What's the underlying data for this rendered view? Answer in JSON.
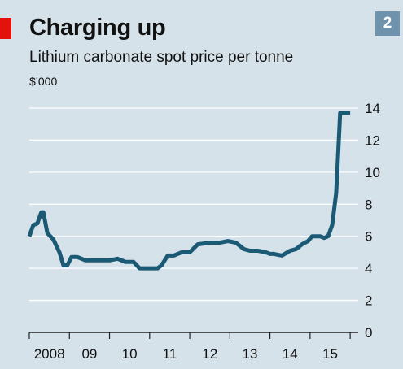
{
  "header": {
    "title": "Charging up",
    "subtitle": "Lithium carbonate spot price per tonne",
    "unit": "$’000",
    "badge": "2"
  },
  "colors": {
    "background": "#d6e2ea",
    "line": "#1b5a75",
    "grid": "#ffffff",
    "accent": "#e3120b",
    "badge": "#6f93ac"
  },
  "chart_data": {
    "type": "line",
    "title": "Charging up",
    "subtitle": "Lithium carbonate spot price per tonne",
    "ylabel": "$’000",
    "ylim": [
      0,
      14
    ],
    "yticks": [
      0,
      2,
      4,
      6,
      8,
      10,
      12,
      14
    ],
    "xlim": [
      2008,
      2016.2
    ],
    "xticks": [
      {
        "value": 2008,
        "label": "2008"
      },
      {
        "value": 2009,
        "label": "09"
      },
      {
        "value": 2010,
        "label": "10"
      },
      {
        "value": 2011,
        "label": "11"
      },
      {
        "value": 2012,
        "label": "12"
      },
      {
        "value": 2013,
        "label": "13"
      },
      {
        "value": 2014,
        "label": "14"
      },
      {
        "value": 2015,
        "label": "15"
      }
    ],
    "grid": true,
    "series": [
      {
        "x": [
          2008.0,
          2008.1,
          2008.2,
          2008.3,
          2008.35,
          2008.45,
          2008.6,
          2008.75,
          2008.85,
          2008.95,
          2009.05,
          2009.2,
          2009.4,
          2009.6,
          2009.8,
          2010.0,
          2010.2,
          2010.4,
          2010.6,
          2010.75,
          2010.85,
          2011.0,
          2011.1,
          2011.2,
          2011.3,
          2011.45,
          2011.6,
          2011.8,
          2012.0,
          2012.2,
          2012.5,
          2012.75,
          2012.95,
          2013.15,
          2013.35,
          2013.5,
          2013.7,
          2013.9,
          2014.0,
          2014.1,
          2014.3,
          2014.5,
          2014.65,
          2014.8,
          2014.95,
          2015.05,
          2015.15,
          2015.25,
          2015.35,
          2015.45,
          2015.55,
          2015.65,
          2015.75,
          2015.85,
          2015.93,
          2016.0
        ],
        "y": [
          6.0,
          6.7,
          6.8,
          7.5,
          7.5,
          6.2,
          5.8,
          5.0,
          4.2,
          4.2,
          4.7,
          4.7,
          4.5,
          4.5,
          4.5,
          4.5,
          4.6,
          4.4,
          4.4,
          4.0,
          4.0,
          4.0,
          4.0,
          4.0,
          4.2,
          4.8,
          4.8,
          5.0,
          5.0,
          5.5,
          5.6,
          5.6,
          5.7,
          5.6,
          5.2,
          5.1,
          5.1,
          5.0,
          4.9,
          4.9,
          4.8,
          5.1,
          5.2,
          5.5,
          5.7,
          6.0,
          6.0,
          6.0,
          5.9,
          6.0,
          6.7,
          8.7,
          13.7,
          13.7,
          13.7,
          13.7
        ]
      }
    ]
  }
}
